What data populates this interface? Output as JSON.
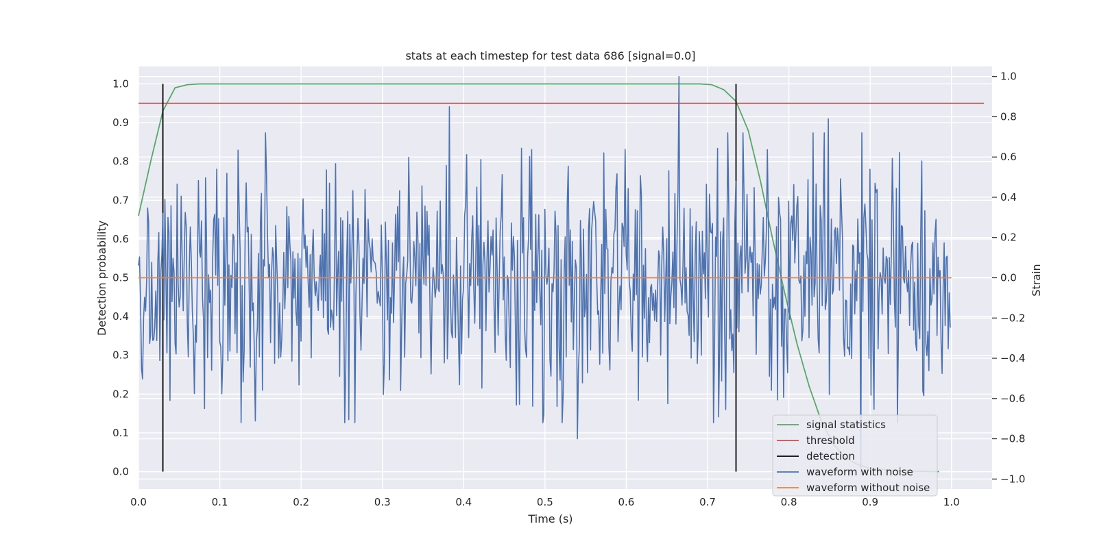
{
  "chart_data": {
    "type": "line",
    "title": "stats at each timestep for test data 686 [signal=0.0]",
    "xlabel": "Time (s)",
    "ylabel": "Detection probability",
    "y2label": "Strain",
    "xlim": [
      0.0,
      1.05
    ],
    "ylim": [
      -0.045,
      1.045
    ],
    "y2lim": [
      -1.05,
      1.05
    ],
    "x_ticks": [
      "0.0",
      "0.1",
      "0.2",
      "0.3",
      "0.4",
      "0.5",
      "0.6",
      "0.7",
      "0.8",
      "0.9",
      "1.0"
    ],
    "y_ticks": [
      "0.0",
      "0.1",
      "0.2",
      "0.3",
      "0.4",
      "0.5",
      "0.6",
      "0.7",
      "0.8",
      "0.9",
      "1.0"
    ],
    "y2_ticks": [
      "−1.0",
      "−0.8",
      "−0.6",
      "−0.4",
      "−0.2",
      "0.0",
      "0.2",
      "0.4",
      "0.6",
      "0.8",
      "1.0"
    ],
    "grid": true,
    "legend_position": "lower-right",
    "colors": {
      "background": "#eaeaf2",
      "grid": "#ffffff",
      "signal_statistics": "#55a868",
      "threshold": "#c44e52",
      "detection": "#000000",
      "waveform_with_noise": "#4c72b0",
      "waveform_without_noise": "#dd8452"
    },
    "legend": [
      "signal statistics",
      "threshold",
      "detection",
      "waveform with noise",
      "waveform without noise"
    ],
    "signal_statistics": {
      "x": [
        0.0,
        0.015,
        0.03,
        0.045,
        0.06,
        0.075,
        0.09,
        0.1,
        0.2,
        0.3,
        0.4,
        0.5,
        0.6,
        0.66,
        0.69,
        0.705,
        0.72,
        0.735,
        0.75,
        0.765,
        0.78,
        0.795,
        0.81,
        0.825,
        0.84,
        0.855,
        0.87,
        0.885,
        0.9,
        0.93,
        0.96,
        0.985
      ],
      "y": [
        0.66,
        0.8,
        0.93,
        0.99,
        0.998,
        1.0,
        1.0,
        1.0,
        1.0,
        1.0,
        1.0,
        1.0,
        1.0,
        1.0,
        1.0,
        0.998,
        0.985,
        0.955,
        0.88,
        0.75,
        0.6,
        0.46,
        0.33,
        0.22,
        0.13,
        0.07,
        0.035,
        0.018,
        0.008,
        0.003,
        0.001,
        0.0
      ]
    },
    "threshold": {
      "y": 0.95,
      "x_range": [
        0.0,
        1.04
      ]
    },
    "detections": [
      {
        "x": 0.03,
        "y_range": [
          0.0,
          1.0
        ]
      },
      {
        "x": 0.735,
        "y_range": [
          0.0,
          1.0
        ]
      }
    ],
    "waveform_with_noise": {
      "x_range": [
        0.0,
        0.9985
      ],
      "n_points": 800,
      "std": 0.3,
      "axis": "right",
      "peaks": [
        {
          "x": 0.382,
          "y": 0.85
        },
        {
          "x": 0.665,
          "y": 1.0
        },
        {
          "x": 0.848,
          "y": 0.79
        },
        {
          "x": 0.54,
          "y": -0.8
        },
        {
          "x": 0.888,
          "y": -0.96
        }
      ]
    },
    "waveform_without_noise": {
      "y": 0.0,
      "x_range": [
        0.0,
        1.0
      ],
      "axis": "right"
    }
  }
}
